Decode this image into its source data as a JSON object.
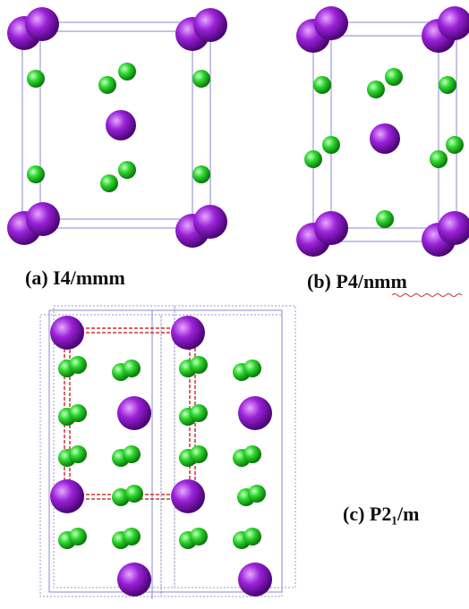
{
  "panels": [
    {
      "label": "(a) I4/mmm"
    },
    {
      "label": "(b) P4/nmm"
    },
    {
      "label": "(c) P2₁/m"
    }
  ]
}
